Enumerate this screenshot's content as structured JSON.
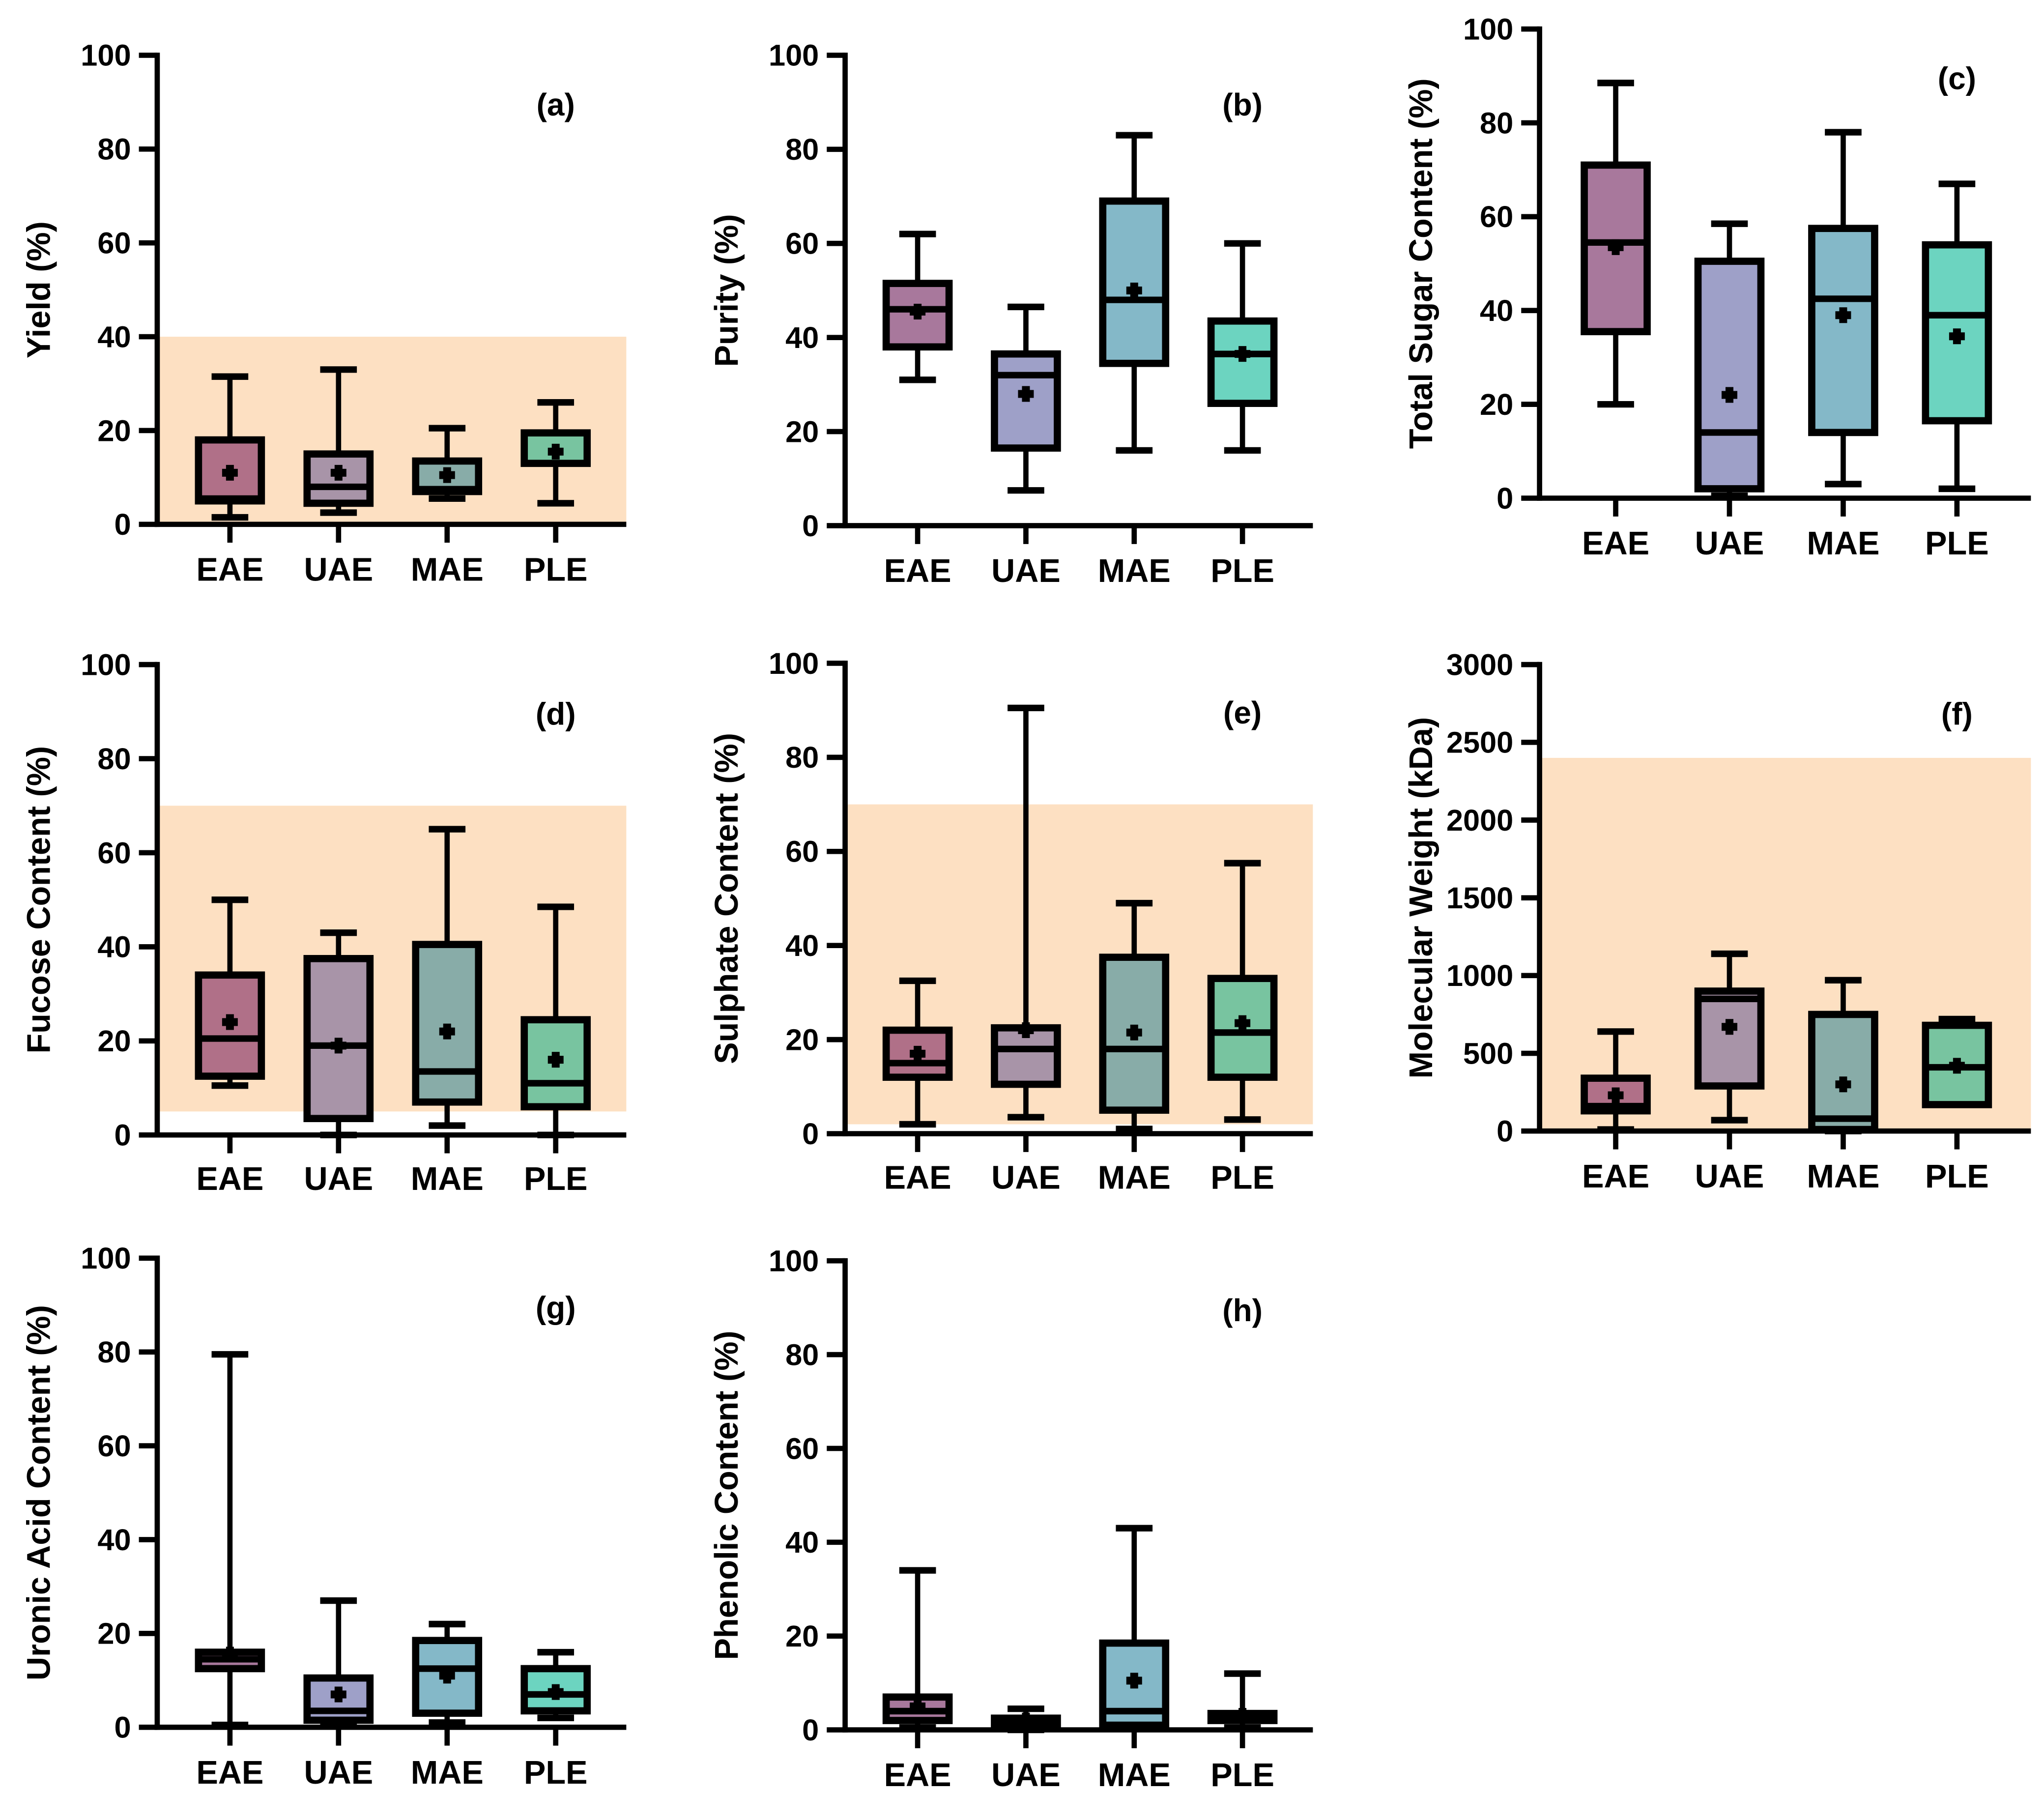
{
  "chart_data": {
    "type": "box",
    "categories": [
      "EAE",
      "UAE",
      "MAE",
      "PLE"
    ],
    "colors_plain": [
      "#a8789c",
      "#9ea0c8",
      "#84b8c8",
      "#6cd4c0"
    ],
    "colors_shaded": [
      "#b07088",
      "#a894a8",
      "#88aca8",
      "#78c4a0"
    ],
    "shade_color": "#fde0c2",
    "panels": [
      {
        "tag": "(a)",
        "ylabel": "Yield (%)",
        "ylim": [
          0,
          100
        ],
        "yticks": [
          0,
          20,
          40,
          60,
          80,
          100
        ],
        "shade": [
          0,
          40
        ],
        "boxes": [
          {
            "min": 1.5,
            "q1": 5,
            "median": 5.5,
            "q3": 18,
            "max": 31.5,
            "mean": 11
          },
          {
            "min": 2.5,
            "q1": 4.5,
            "median": 8,
            "q3": 15,
            "max": 33,
            "mean": 11
          },
          {
            "min": 5.5,
            "q1": 7,
            "median": 7.5,
            "q3": 13.5,
            "max": 20.5,
            "mean": 10.5
          },
          {
            "min": 4.5,
            "q1": 13,
            "median": 13,
            "q3": 19.5,
            "max": 26,
            "mean": 15.5
          }
        ]
      },
      {
        "tag": "(b)",
        "ylabel": "Purity (%)",
        "ylim": [
          0,
          100
        ],
        "yticks": [
          0,
          20,
          40,
          60,
          80,
          100
        ],
        "shade": null,
        "boxes": [
          {
            "min": 31,
            "q1": 38,
            "median": 46,
            "q3": 51.5,
            "max": 62,
            "mean": 45.5
          },
          {
            "min": 7.5,
            "q1": 16.5,
            "median": 32,
            "q3": 36.5,
            "max": 46.5,
            "mean": 28
          },
          {
            "min": 16,
            "q1": 34.5,
            "median": 48,
            "q3": 69,
            "max": 83,
            "mean": 50
          },
          {
            "min": 16,
            "q1": 26,
            "median": 36.5,
            "q3": 43.5,
            "max": 60,
            "mean": 36.5
          }
        ]
      },
      {
        "tag": "(c)",
        "ylabel": "Total Sugar Content (%)",
        "ylim": [
          0,
          100
        ],
        "yticks": [
          0,
          20,
          40,
          60,
          80,
          100
        ],
        "shade": null,
        "boxes": [
          {
            "min": 20,
            "q1": 35.5,
            "median": 54.5,
            "q3": 71,
            "max": 88.5,
            "mean": 53.5
          },
          {
            "min": 0.5,
            "q1": 2,
            "median": 14,
            "q3": 50.5,
            "max": 58.5,
            "mean": 22
          },
          {
            "min": 3,
            "q1": 14,
            "median": 42.5,
            "q3": 57.5,
            "max": 78,
            "mean": 39
          },
          {
            "min": 2,
            "q1": 16.5,
            "median": 39,
            "q3": 54,
            "max": 67,
            "mean": 34.5
          }
        ]
      },
      {
        "tag": "(d)",
        "ylabel": "Fucose Content (%)",
        "ylim": [
          0,
          100
        ],
        "yticks": [
          0,
          20,
          40,
          60,
          80,
          100
        ],
        "shade": [
          5,
          70
        ],
        "boxes": [
          {
            "min": 10.5,
            "q1": 12.5,
            "median": 20.5,
            "q3": 34,
            "max": 50,
            "mean": 24
          },
          {
            "min": 0,
            "q1": 3.5,
            "median": 19,
            "q3": 37.5,
            "max": 43,
            "mean": 19
          },
          {
            "min": 2,
            "q1": 7,
            "median": 13.5,
            "q3": 40.5,
            "max": 65,
            "mean": 22
          },
          {
            "min": 0,
            "q1": 6,
            "median": 11,
            "q3": 24.5,
            "max": 48.5,
            "mean": 16
          }
        ]
      },
      {
        "tag": "(e)",
        "ylabel": "Sulphate Content (%)",
        "ylim": [
          0,
          100
        ],
        "yticks": [
          0,
          20,
          40,
          60,
          80,
          100
        ],
        "shade": [
          2,
          70
        ],
        "boxes": [
          {
            "min": 2,
            "q1": 12,
            "median": 15,
            "q3": 22,
            "max": 32.5,
            "mean": 17
          },
          {
            "min": 3.5,
            "q1": 10.5,
            "median": 18,
            "q3": 22.5,
            "max": 90.5,
            "mean": 22
          },
          {
            "min": 1,
            "q1": 5,
            "median": 18,
            "q3": 37.5,
            "max": 49,
            "mean": 21.5
          },
          {
            "min": 3,
            "q1": 12,
            "median": 21.5,
            "q3": 33,
            "max": 57.5,
            "mean": 23.5
          }
        ]
      },
      {
        "tag": "(f)",
        "ylabel": "Molecular Weight (kDa)",
        "ylim": [
          0,
          3000
        ],
        "yticks": [
          0,
          500,
          1000,
          1500,
          2000,
          2500,
          3000
        ],
        "shade": [
          0,
          2400
        ],
        "boxes": [
          {
            "min": 10,
            "q1": 130,
            "median": 160,
            "q3": 340,
            "max": 640,
            "mean": 230
          },
          {
            "min": 70,
            "q1": 290,
            "median": 850,
            "q3": 900,
            "max": 1140,
            "mean": 670
          },
          {
            "min": 0,
            "q1": 10,
            "median": 80,
            "q3": 750,
            "max": 970,
            "mean": 300
          },
          {
            "min": 170,
            "q1": 170,
            "median": 410,
            "q3": 680,
            "max": 720,
            "mean": 420
          }
        ]
      },
      {
        "tag": "(g)",
        "ylabel": "Uronic Acid Content (%)",
        "ylim": [
          0,
          100
        ],
        "yticks": [
          0,
          20,
          40,
          60,
          80,
          100
        ],
        "shade": null,
        "boxes": [
          {
            "min": 0.5,
            "q1": 12.5,
            "median": 14.5,
            "q3": 16,
            "max": 79.5,
            "mean": 15.5
          },
          {
            "min": 0.5,
            "q1": 1.5,
            "median": 3.5,
            "q3": 10.5,
            "max": 27,
            "mean": 7
          },
          {
            "min": 1,
            "q1": 3,
            "median": 12.5,
            "q3": 18.5,
            "max": 22,
            "mean": 11
          },
          {
            "min": 2,
            "q1": 3.5,
            "median": 7,
            "q3": 12.5,
            "max": 16,
            "mean": 7.5
          }
        ]
      },
      {
        "tag": "(h)",
        "ylabel": "Phenolic Content (%)",
        "ylim": [
          0,
          100
        ],
        "yticks": [
          0,
          20,
          40,
          60,
          80,
          100
        ],
        "shade": null,
        "boxes": [
          {
            "min": 0.5,
            "q1": 2,
            "median": 4,
            "q3": 7,
            "max": 34,
            "mean": 5
          },
          {
            "min": 0,
            "q1": 1,
            "median": 1.5,
            "q3": 2.5,
            "max": 4.5,
            "mean": 2
          },
          {
            "min": 0.5,
            "q1": 1,
            "median": 4,
            "q3": 18.5,
            "max": 43,
            "mean": 10.5
          },
          {
            "min": 0.5,
            "q1": 2,
            "median": 3,
            "q3": 3.5,
            "max": 12,
            "mean": 3
          }
        ]
      }
    ]
  }
}
